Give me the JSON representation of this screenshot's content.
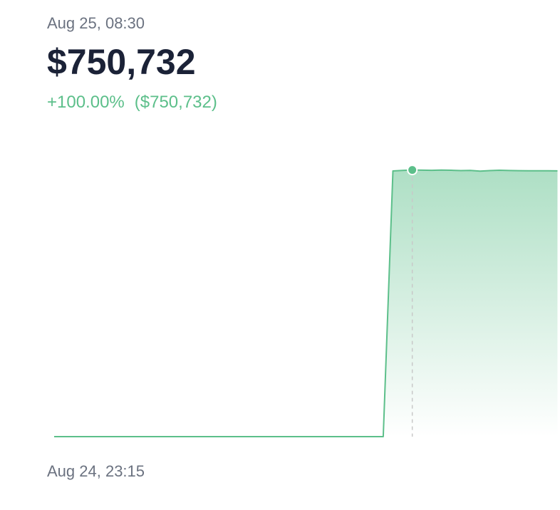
{
  "header": {
    "change_percent": "+100.00%",
    "change_value": "($750,732)"
  },
  "chart_data": {
    "type": "area",
    "color": "#5cbf8a",
    "categories": [
      "Aug 24, 23:15",
      null,
      null,
      null,
      null,
      null,
      null,
      null,
      null,
      null,
      null,
      null,
      null,
      null,
      null,
      null,
      null,
      null,
      null,
      null,
      null,
      null,
      null,
      null,
      null,
      null,
      null,
      null,
      null,
      null,
      null,
      null,
      null,
      null,
      null,
      null,
      null,
      "Aug 25, 08:30",
      null,
      null,
      null,
      null,
      null,
      null,
      null,
      null,
      null,
      null,
      null,
      null,
      null,
      null,
      null
    ],
    "values": [
      0,
      0,
      0,
      0,
      0,
      0,
      0,
      0,
      0,
      0,
      0,
      0,
      0,
      0,
      0,
      0,
      0,
      0,
      0,
      0,
      0,
      0,
      0,
      0,
      0,
      0,
      0,
      0,
      0,
      0,
      0,
      0,
      0,
      0,
      0,
      748000,
      749500,
      750732,
      750200,
      749800,
      750300,
      750000,
      749000,
      749600,
      747500,
      749000,
      750000,
      749200,
      748800,
      748500,
      748600,
      748300,
      748200
    ],
    "value_labels": [
      null,
      null,
      null,
      null,
      null,
      null,
      null,
      null,
      null,
      null,
      null,
      null,
      null,
      null,
      null,
      null,
      null,
      null,
      null,
      null,
      null,
      null,
      null,
      null,
      null,
      null,
      null,
      null,
      null,
      null,
      null,
      null,
      null,
      null,
      null,
      null,
      null,
      "$750,732",
      null,
      null,
      null,
      null,
      null,
      null,
      null,
      null,
      null,
      null,
      null,
      null,
      null,
      null,
      null
    ],
    "ylim": [
      0,
      760000
    ]
  }
}
